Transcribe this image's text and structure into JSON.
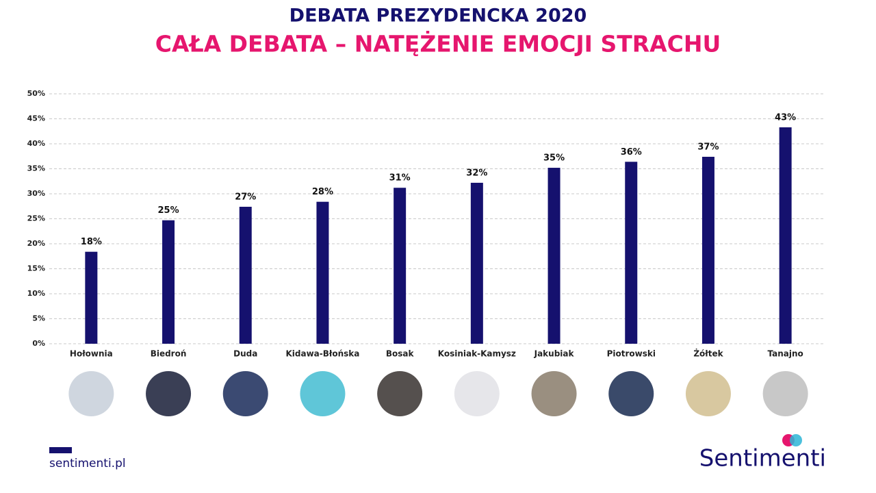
{
  "chart_data": {
    "type": "bar",
    "title": "DEBATA PREZYDENCKA 2020",
    "subtitle": "CAŁA DEBATA – NATĘŻENIE EMOCJI STRACHU",
    "categories": [
      "Hołownia",
      "Biedroń",
      "Duda",
      "Kidawa-Błońska",
      "Bosak",
      "Kosiniak-Kamysz",
      "Jakubiak",
      "Piotrowski",
      "Żółtek",
      "Tanajno"
    ],
    "values": [
      18.4,
      24.7,
      27.4,
      28.4,
      31.2,
      32.2,
      35.2,
      36.4,
      37.4,
      43.3
    ],
    "value_labels": [
      "18%",
      "25%",
      "27%",
      "28%",
      "31%",
      "32%",
      "35%",
      "36%",
      "37%",
      "43%"
    ],
    "color": "#15116e",
    "ylim": [
      0,
      50
    ],
    "yticks": [
      {
        "value": 0,
        "label": "0%"
      },
      {
        "value": 5,
        "label": "5%"
      },
      {
        "value": 10,
        "label": "10%"
      },
      {
        "value": 15,
        "label": "15%"
      },
      {
        "value": 20,
        "label": "20%"
      },
      {
        "value": 25,
        "label": "25%"
      },
      {
        "value": 30,
        "label": "30%"
      },
      {
        "value": 35,
        "label": "35%"
      },
      {
        "value": 40,
        "label": "40%"
      },
      {
        "value": 45,
        "label": "45%"
      },
      {
        "value": 50,
        "label": "50%"
      }
    ],
    "grid": true
  },
  "footer": {
    "website": "sentimenti.pl",
    "logo": "Sentimenti"
  }
}
